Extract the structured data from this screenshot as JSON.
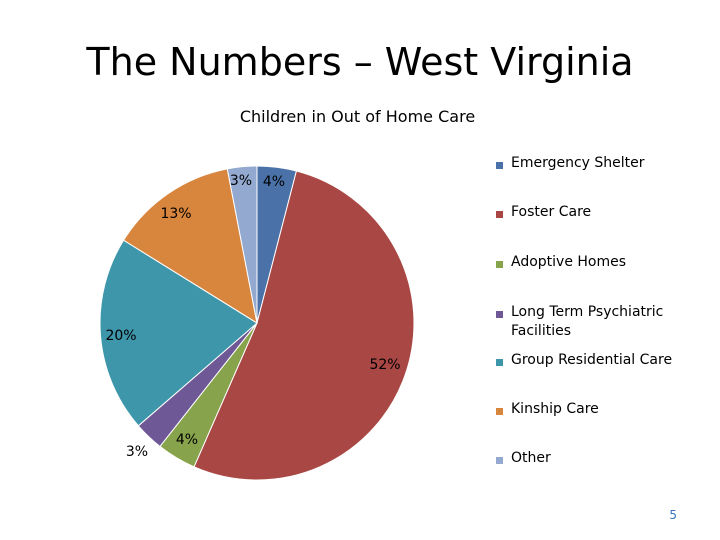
{
  "slide": {
    "title": "The Numbers – West Virginia",
    "page_number": "5"
  },
  "chart_data": {
    "type": "pie",
    "title": "Children in Out of Home Care",
    "legend_position": "right",
    "slices": [
      {
        "name": "Emergency Shelter",
        "value": 4,
        "label": "4%",
        "color": "#4a72a8"
      },
      {
        "name": "Foster Care",
        "value": 52,
        "label": "52%",
        "color": "#a84743"
      },
      {
        "name": "Adoptive Homes",
        "value": 4,
        "label": "4%",
        "color": "#87a34b"
      },
      {
        "name": "Long Term Psychiatric Facilities",
        "value": 3,
        "label": "3%",
        "color": "#6e5896"
      },
      {
        "name": "Group Residential Care",
        "value": 20,
        "label": "20%",
        "color": "#3e96ab"
      },
      {
        "name": "Kinship Care",
        "value": 13,
        "label": "13%",
        "color": "#d8853d"
      },
      {
        "name": "Other",
        "value": 3,
        "label": "3%",
        "color": "#93a9cf"
      }
    ],
    "legend": [
      "Emergency Shelter",
      "Foster Care",
      "Adoptive Homes",
      "Long Term Psychiatric Facilities",
      "Group Residential Care",
      "Kinship Care",
      "Other"
    ]
  }
}
